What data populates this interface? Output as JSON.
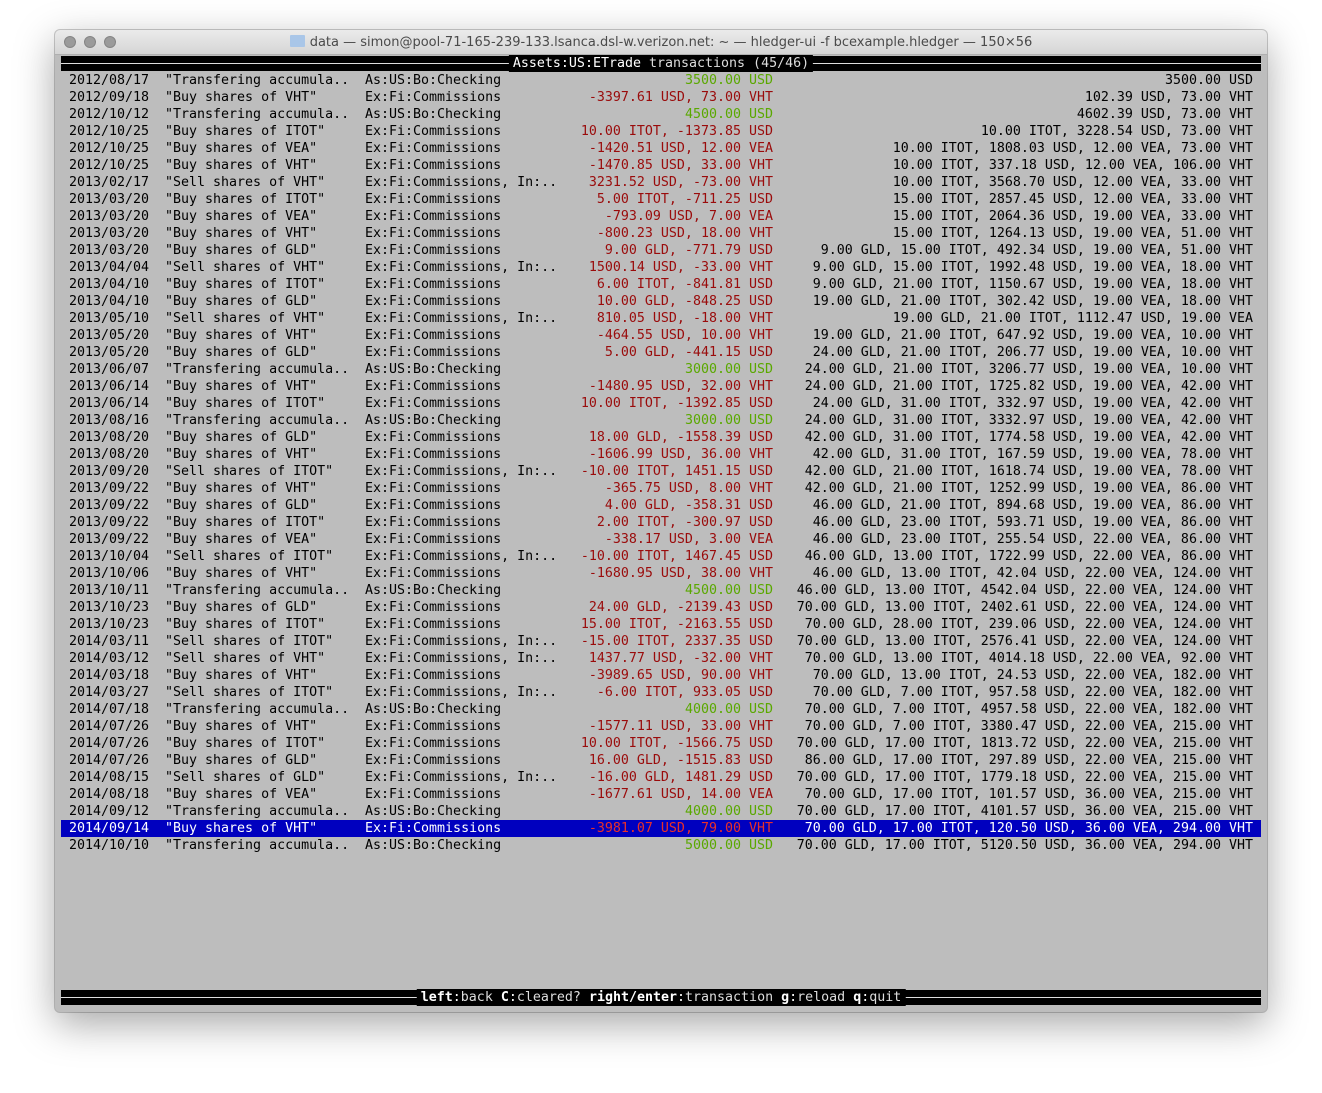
{
  "window": {
    "title": "data — simon@pool-71-165-239-133.lsanca.dsl-w.verizon.net: ~ — hledger-ui -f bcexample.hledger — 150×56"
  },
  "header": {
    "account": "Assets:US:ETrade",
    "suffix": " transactions (45/46)"
  },
  "colors": {
    "positive": "#5aa800",
    "negative": "#9a0b0b",
    "selection": "#0000bf"
  },
  "selected_index": 44,
  "rows": [
    {
      "date": "2012/08/17",
      "desc": "\"Transfering accumula..",
      "acct": "As:US:Bo:Checking",
      "amt": "3500.00 USD",
      "sign": "pos",
      "bal": "3500.00 USD"
    },
    {
      "date": "2012/09/18",
      "desc": "\"Buy shares of VHT\"",
      "acct": "Ex:Fi:Commissions",
      "amt": "-3397.61 USD, 73.00 VHT",
      "sign": "neg",
      "bal": "102.39 USD, 73.00 VHT"
    },
    {
      "date": "2012/10/12",
      "desc": "\"Transfering accumula..",
      "acct": "As:US:Bo:Checking",
      "amt": "4500.00 USD",
      "sign": "pos",
      "bal": "4602.39 USD, 73.00 VHT"
    },
    {
      "date": "2012/10/25",
      "desc": "\"Buy shares of ITOT\"",
      "acct": "Ex:Fi:Commissions",
      "amt": "10.00 ITOT, -1373.85 USD",
      "sign": "neg",
      "bal": "10.00 ITOT, 3228.54 USD, 73.00 VHT"
    },
    {
      "date": "2012/10/25",
      "desc": "\"Buy shares of VEA\"",
      "acct": "Ex:Fi:Commissions",
      "amt": "-1420.51 USD, 12.00 VEA",
      "sign": "neg",
      "bal": "10.00 ITOT, 1808.03 USD, 12.00 VEA, 73.00 VHT"
    },
    {
      "date": "2012/10/25",
      "desc": "\"Buy shares of VHT\"",
      "acct": "Ex:Fi:Commissions",
      "amt": "-1470.85 USD, 33.00 VHT",
      "sign": "neg",
      "bal": "10.00 ITOT, 337.18 USD, 12.00 VEA, 106.00 VHT"
    },
    {
      "date": "2013/02/17",
      "desc": "\"Sell shares of VHT\"",
      "acct": "Ex:Fi:Commissions, In:..",
      "amt": "3231.52 USD, -73.00 VHT",
      "sign": "neg",
      "bal": "10.00 ITOT, 3568.70 USD, 12.00 VEA, 33.00 VHT"
    },
    {
      "date": "2013/03/20",
      "desc": "\"Buy shares of ITOT\"",
      "acct": "Ex:Fi:Commissions",
      "amt": "5.00 ITOT, -711.25 USD",
      "sign": "neg",
      "bal": "15.00 ITOT, 2857.45 USD, 12.00 VEA, 33.00 VHT"
    },
    {
      "date": "2013/03/20",
      "desc": "\"Buy shares of VEA\"",
      "acct": "Ex:Fi:Commissions",
      "amt": "-793.09 USD, 7.00 VEA",
      "sign": "neg",
      "bal": "15.00 ITOT, 2064.36 USD, 19.00 VEA, 33.00 VHT"
    },
    {
      "date": "2013/03/20",
      "desc": "\"Buy shares of VHT\"",
      "acct": "Ex:Fi:Commissions",
      "amt": "-800.23 USD, 18.00 VHT",
      "sign": "neg",
      "bal": "15.00 ITOT, 1264.13 USD, 19.00 VEA, 51.00 VHT"
    },
    {
      "date": "2013/03/20",
      "desc": "\"Buy shares of GLD\"",
      "acct": "Ex:Fi:Commissions",
      "amt": "9.00 GLD, -771.79 USD",
      "sign": "neg",
      "bal": "9.00 GLD, 15.00 ITOT, 492.34 USD, 19.00 VEA, 51.00 VHT"
    },
    {
      "date": "2013/04/04",
      "desc": "\"Sell shares of VHT\"",
      "acct": "Ex:Fi:Commissions, In:..",
      "amt": "1500.14 USD, -33.00 VHT",
      "sign": "neg",
      "bal": "9.00 GLD, 15.00 ITOT, 1992.48 USD, 19.00 VEA, 18.00 VHT"
    },
    {
      "date": "2013/04/10",
      "desc": "\"Buy shares of ITOT\"",
      "acct": "Ex:Fi:Commissions",
      "amt": "6.00 ITOT, -841.81 USD",
      "sign": "neg",
      "bal": "9.00 GLD, 21.00 ITOT, 1150.67 USD, 19.00 VEA, 18.00 VHT"
    },
    {
      "date": "2013/04/10",
      "desc": "\"Buy shares of GLD\"",
      "acct": "Ex:Fi:Commissions",
      "amt": "10.00 GLD, -848.25 USD",
      "sign": "neg",
      "bal": "19.00 GLD, 21.00 ITOT, 302.42 USD, 19.00 VEA, 18.00 VHT"
    },
    {
      "date": "2013/05/10",
      "desc": "\"Sell shares of VHT\"",
      "acct": "Ex:Fi:Commissions, In:..",
      "amt": "810.05 USD, -18.00 VHT",
      "sign": "neg",
      "bal": "19.00 GLD, 21.00 ITOT, 1112.47 USD, 19.00 VEA"
    },
    {
      "date": "2013/05/20",
      "desc": "\"Buy shares of VHT\"",
      "acct": "Ex:Fi:Commissions",
      "amt": "-464.55 USD, 10.00 VHT",
      "sign": "neg",
      "bal": "19.00 GLD, 21.00 ITOT, 647.92 USD, 19.00 VEA, 10.00 VHT"
    },
    {
      "date": "2013/05/20",
      "desc": "\"Buy shares of GLD\"",
      "acct": "Ex:Fi:Commissions",
      "amt": "5.00 GLD, -441.15 USD",
      "sign": "neg",
      "bal": "24.00 GLD, 21.00 ITOT, 206.77 USD, 19.00 VEA, 10.00 VHT"
    },
    {
      "date": "2013/06/07",
      "desc": "\"Transfering accumula..",
      "acct": "As:US:Bo:Checking",
      "amt": "3000.00 USD",
      "sign": "pos",
      "bal": "24.00 GLD, 21.00 ITOT, 3206.77 USD, 19.00 VEA, 10.00 VHT"
    },
    {
      "date": "2013/06/14",
      "desc": "\"Buy shares of VHT\"",
      "acct": "Ex:Fi:Commissions",
      "amt": "-1480.95 USD, 32.00 VHT",
      "sign": "neg",
      "bal": "24.00 GLD, 21.00 ITOT, 1725.82 USD, 19.00 VEA, 42.00 VHT"
    },
    {
      "date": "2013/06/14",
      "desc": "\"Buy shares of ITOT\"",
      "acct": "Ex:Fi:Commissions",
      "amt": "10.00 ITOT, -1392.85 USD",
      "sign": "neg",
      "bal": "24.00 GLD, 31.00 ITOT, 332.97 USD, 19.00 VEA, 42.00 VHT"
    },
    {
      "date": "2013/08/16",
      "desc": "\"Transfering accumula..",
      "acct": "As:US:Bo:Checking",
      "amt": "3000.00 USD",
      "sign": "pos",
      "bal": "24.00 GLD, 31.00 ITOT, 3332.97 USD, 19.00 VEA, 42.00 VHT"
    },
    {
      "date": "2013/08/20",
      "desc": "\"Buy shares of GLD\"",
      "acct": "Ex:Fi:Commissions",
      "amt": "18.00 GLD, -1558.39 USD",
      "sign": "neg",
      "bal": "42.00 GLD, 31.00 ITOT, 1774.58 USD, 19.00 VEA, 42.00 VHT"
    },
    {
      "date": "2013/08/20",
      "desc": "\"Buy shares of VHT\"",
      "acct": "Ex:Fi:Commissions",
      "amt": "-1606.99 USD, 36.00 VHT",
      "sign": "neg",
      "bal": "42.00 GLD, 31.00 ITOT, 167.59 USD, 19.00 VEA, 78.00 VHT"
    },
    {
      "date": "2013/09/20",
      "desc": "\"Sell shares of ITOT\"",
      "acct": "Ex:Fi:Commissions, In:..",
      "amt": "-10.00 ITOT, 1451.15 USD",
      "sign": "neg",
      "bal": "42.00 GLD, 21.00 ITOT, 1618.74 USD, 19.00 VEA, 78.00 VHT"
    },
    {
      "date": "2013/09/22",
      "desc": "\"Buy shares of VHT\"",
      "acct": "Ex:Fi:Commissions",
      "amt": "-365.75 USD, 8.00 VHT",
      "sign": "neg",
      "bal": "42.00 GLD, 21.00 ITOT, 1252.99 USD, 19.00 VEA, 86.00 VHT"
    },
    {
      "date": "2013/09/22",
      "desc": "\"Buy shares of GLD\"",
      "acct": "Ex:Fi:Commissions",
      "amt": "4.00 GLD, -358.31 USD",
      "sign": "neg",
      "bal": "46.00 GLD, 21.00 ITOT, 894.68 USD, 19.00 VEA, 86.00 VHT"
    },
    {
      "date": "2013/09/22",
      "desc": "\"Buy shares of ITOT\"",
      "acct": "Ex:Fi:Commissions",
      "amt": "2.00 ITOT, -300.97 USD",
      "sign": "neg",
      "bal": "46.00 GLD, 23.00 ITOT, 593.71 USD, 19.00 VEA, 86.00 VHT"
    },
    {
      "date": "2013/09/22",
      "desc": "\"Buy shares of VEA\"",
      "acct": "Ex:Fi:Commissions",
      "amt": "-338.17 USD, 3.00 VEA",
      "sign": "neg",
      "bal": "46.00 GLD, 23.00 ITOT, 255.54 USD, 22.00 VEA, 86.00 VHT"
    },
    {
      "date": "2013/10/04",
      "desc": "\"Sell shares of ITOT\"",
      "acct": "Ex:Fi:Commissions, In:..",
      "amt": "-10.00 ITOT, 1467.45 USD",
      "sign": "neg",
      "bal": "46.00 GLD, 13.00 ITOT, 1722.99 USD, 22.00 VEA, 86.00 VHT"
    },
    {
      "date": "2013/10/06",
      "desc": "\"Buy shares of VHT\"",
      "acct": "Ex:Fi:Commissions",
      "amt": "-1680.95 USD, 38.00 VHT",
      "sign": "neg",
      "bal": "46.00 GLD, 13.00 ITOT, 42.04 USD, 22.00 VEA, 124.00 VHT"
    },
    {
      "date": "2013/10/11",
      "desc": "\"Transfering accumula..",
      "acct": "As:US:Bo:Checking",
      "amt": "4500.00 USD",
      "sign": "pos",
      "bal": "46.00 GLD, 13.00 ITOT, 4542.04 USD, 22.00 VEA, 124.00 VHT"
    },
    {
      "date": "2013/10/23",
      "desc": "\"Buy shares of GLD\"",
      "acct": "Ex:Fi:Commissions",
      "amt": "24.00 GLD, -2139.43 USD",
      "sign": "neg",
      "bal": "70.00 GLD, 13.00 ITOT, 2402.61 USD, 22.00 VEA, 124.00 VHT"
    },
    {
      "date": "2013/10/23",
      "desc": "\"Buy shares of ITOT\"",
      "acct": "Ex:Fi:Commissions",
      "amt": "15.00 ITOT, -2163.55 USD",
      "sign": "neg",
      "bal": "70.00 GLD, 28.00 ITOT, 239.06 USD, 22.00 VEA, 124.00 VHT"
    },
    {
      "date": "2014/03/11",
      "desc": "\"Sell shares of ITOT\"",
      "acct": "Ex:Fi:Commissions, In:..",
      "amt": "-15.00 ITOT, 2337.35 USD",
      "sign": "neg",
      "bal": "70.00 GLD, 13.00 ITOT, 2576.41 USD, 22.00 VEA, 124.00 VHT"
    },
    {
      "date": "2014/03/12",
      "desc": "\"Sell shares of VHT\"",
      "acct": "Ex:Fi:Commissions, In:..",
      "amt": "1437.77 USD, -32.00 VHT",
      "sign": "neg",
      "bal": "70.00 GLD, 13.00 ITOT, 4014.18 USD, 22.00 VEA, 92.00 VHT"
    },
    {
      "date": "2014/03/18",
      "desc": "\"Buy shares of VHT\"",
      "acct": "Ex:Fi:Commissions",
      "amt": "-3989.65 USD, 90.00 VHT",
      "sign": "neg",
      "bal": "70.00 GLD, 13.00 ITOT, 24.53 USD, 22.00 VEA, 182.00 VHT"
    },
    {
      "date": "2014/03/27",
      "desc": "\"Sell shares of ITOT\"",
      "acct": "Ex:Fi:Commissions, In:..",
      "amt": "-6.00 ITOT, 933.05 USD",
      "sign": "neg",
      "bal": "70.00 GLD, 7.00 ITOT, 957.58 USD, 22.00 VEA, 182.00 VHT"
    },
    {
      "date": "2014/07/18",
      "desc": "\"Transfering accumula..",
      "acct": "As:US:Bo:Checking",
      "amt": "4000.00 USD",
      "sign": "pos",
      "bal": "70.00 GLD, 7.00 ITOT, 4957.58 USD, 22.00 VEA, 182.00 VHT"
    },
    {
      "date": "2014/07/26",
      "desc": "\"Buy shares of VHT\"",
      "acct": "Ex:Fi:Commissions",
      "amt": "-1577.11 USD, 33.00 VHT",
      "sign": "neg",
      "bal": "70.00 GLD, 7.00 ITOT, 3380.47 USD, 22.00 VEA, 215.00 VHT"
    },
    {
      "date": "2014/07/26",
      "desc": "\"Buy shares of ITOT\"",
      "acct": "Ex:Fi:Commissions",
      "amt": "10.00 ITOT, -1566.75 USD",
      "sign": "neg",
      "bal": "70.00 GLD, 17.00 ITOT, 1813.72 USD, 22.00 VEA, 215.00 VHT"
    },
    {
      "date": "2014/07/26",
      "desc": "\"Buy shares of GLD\"",
      "acct": "Ex:Fi:Commissions",
      "amt": "16.00 GLD, -1515.83 USD",
      "sign": "neg",
      "bal": "86.00 GLD, 17.00 ITOT, 297.89 USD, 22.00 VEA, 215.00 VHT"
    },
    {
      "date": "2014/08/15",
      "desc": "\"Sell shares of GLD\"",
      "acct": "Ex:Fi:Commissions, In:..",
      "amt": "-16.00 GLD, 1481.29 USD",
      "sign": "neg",
      "bal": "70.00 GLD, 17.00 ITOT, 1779.18 USD, 22.00 VEA, 215.00 VHT"
    },
    {
      "date": "2014/08/18",
      "desc": "\"Buy shares of VEA\"",
      "acct": "Ex:Fi:Commissions",
      "amt": "-1677.61 USD, 14.00 VEA",
      "sign": "neg",
      "bal": "70.00 GLD, 17.00 ITOT, 101.57 USD, 36.00 VEA, 215.00 VHT"
    },
    {
      "date": "2014/09/12",
      "desc": "\"Transfering accumula..",
      "acct": "As:US:Bo:Checking",
      "amt": "4000.00 USD",
      "sign": "pos",
      "bal": "70.00 GLD, 17.00 ITOT, 4101.57 USD, 36.00 VEA, 215.00 VHT"
    },
    {
      "date": "2014/09/14",
      "desc": "\"Buy shares of VHT\"",
      "acct": "Ex:Fi:Commissions",
      "amt": "-3981.07 USD, 79.00 VHT",
      "sign": "neg",
      "bal": "70.00 GLD, 17.00 ITOT, 120.50 USD, 36.00 VEA, 294.00 VHT"
    },
    {
      "date": "2014/10/10",
      "desc": "\"Transfering accumula..",
      "acct": "As:US:Bo:Checking",
      "amt": "5000.00 USD",
      "sign": "pos",
      "bal": "70.00 GLD, 17.00 ITOT, 5120.50 USD, 36.00 VEA, 294.00 VHT"
    }
  ],
  "footer": {
    "keys": [
      {
        "key": "left",
        "action": "back"
      },
      {
        "key": "C",
        "action": "cleared?"
      },
      {
        "key": "right/enter",
        "action": "transaction"
      },
      {
        "key": "g",
        "action": "reload"
      },
      {
        "key": "q",
        "action": "quit"
      }
    ]
  }
}
